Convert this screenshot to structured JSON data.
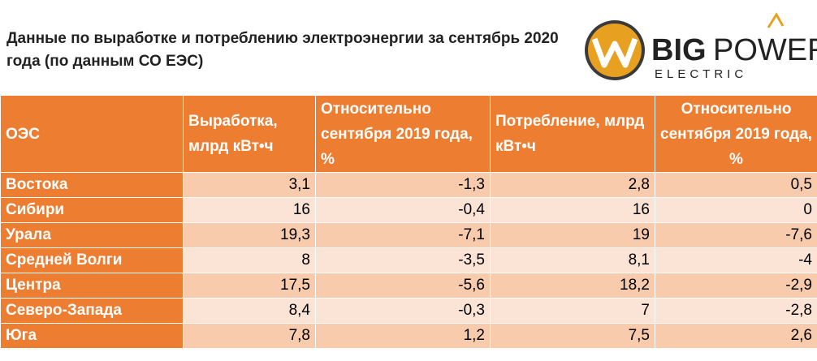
{
  "header": {
    "title": "Данные по выработке и потреблению электроэнергии за сентябрь 2020 года (по данным СО ЕЭС)",
    "logo": {
      "big": "BIG",
      "power": "POWER",
      "electric": "ELECTRIC"
    }
  },
  "table": {
    "columns": [
      "ОЭС",
      "Выработка, млрд кВт•ч",
      "Относительно сентября 2019 года, %",
      "Потребление, млрд кВт•ч",
      "Относительно сентября 2019 года, %"
    ],
    "rows": [
      [
        "Востока",
        "3,1",
        "-1,3",
        "2,8",
        "0,5"
      ],
      [
        "Сибири",
        "16",
        "-0,4",
        "16",
        "0"
      ],
      [
        "Урала",
        "19,3",
        "-7,1",
        "19",
        "-7,6"
      ],
      [
        "Средней Волги",
        "8",
        "-3,5",
        "8,1",
        "-4"
      ],
      [
        "Центра",
        "17,5",
        "-5,6",
        "18,2",
        "-2,9"
      ],
      [
        "Северо-Запада",
        "8,4",
        "-0,3",
        "7",
        "-2,8"
      ],
      [
        "Юга",
        "7,8",
        "1,2",
        "7,5",
        "2,6"
      ]
    ]
  }
}
